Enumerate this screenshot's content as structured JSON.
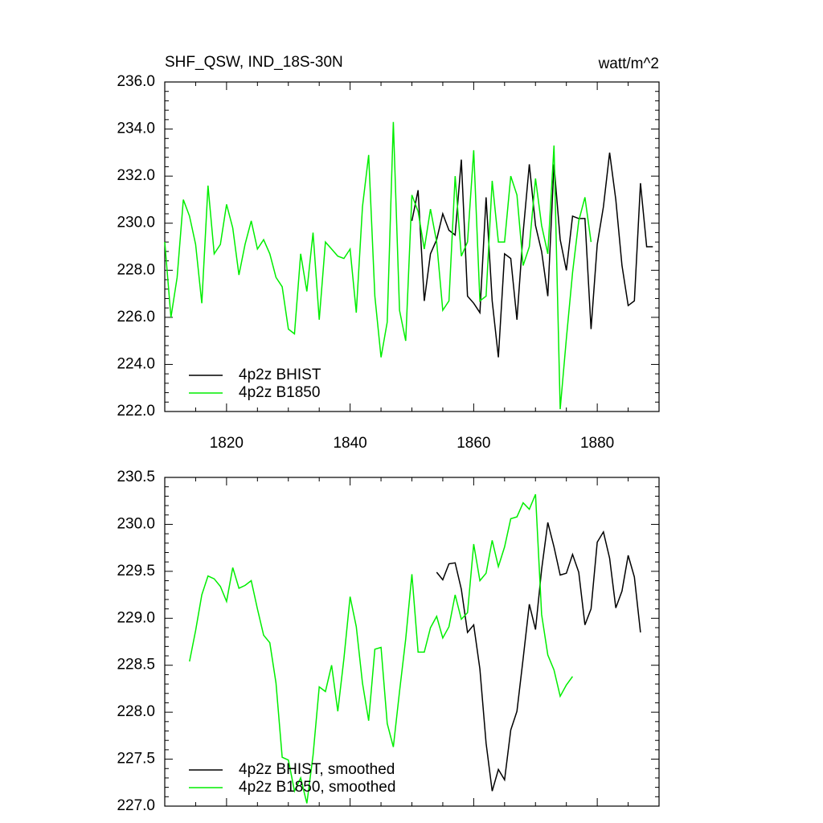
{
  "chart_data": [
    {
      "type": "line",
      "title": "SHF_QSW, IND_18S-30N",
      "units": "watt/m^2",
      "x": [
        1810,
        1811,
        1812,
        1813,
        1814,
        1815,
        1816,
        1817,
        1818,
        1819,
        1820,
        1821,
        1822,
        1823,
        1824,
        1825,
        1826,
        1827,
        1828,
        1829,
        1830,
        1831,
        1832,
        1833,
        1834,
        1835,
        1836,
        1837,
        1838,
        1839,
        1840,
        1841,
        1842,
        1843,
        1844,
        1845,
        1846,
        1847,
        1848,
        1849,
        1850,
        1851,
        1852,
        1853,
        1854,
        1855,
        1856,
        1857,
        1858,
        1859,
        1860,
        1861,
        1862,
        1863,
        1864,
        1865,
        1866,
        1867,
        1868,
        1869,
        1870,
        1871,
        1872,
        1873,
        1874,
        1875,
        1876,
        1877,
        1878,
        1879,
        1880,
        1881,
        1882,
        1883,
        1884,
        1885,
        1886,
        1887,
        1888,
        1889
      ],
      "series": [
        {
          "name": "4p2z BHIST",
          "color": "#000000",
          "values": [
            null,
            null,
            null,
            null,
            null,
            null,
            null,
            null,
            null,
            null,
            null,
            null,
            null,
            null,
            null,
            null,
            null,
            null,
            null,
            null,
            null,
            null,
            null,
            null,
            null,
            null,
            null,
            null,
            null,
            null,
            null,
            null,
            null,
            null,
            null,
            null,
            null,
            null,
            null,
            null,
            230.1,
            231.4,
            226.7,
            228.7,
            229.3,
            230.4,
            229.7,
            229.5,
            232.7,
            226.9,
            226.6,
            226.2,
            231.1,
            226.7,
            224.3,
            228.7,
            228.5,
            225.9,
            229.6,
            232.5,
            229.9,
            228.8,
            226.9,
            232.5,
            229.3,
            228.0,
            230.3,
            230.2,
            230.2,
            225.5,
            229.1,
            230.7,
            233.0,
            231.0,
            228.2,
            226.5,
            226.7,
            231.7,
            229.0,
            229.0
          ]
        },
        {
          "name": "4p2z B1850",
          "color": "#00ee00",
          "values": [
            229.2,
            226.0,
            227.7,
            231.0,
            230.3,
            229.1,
            226.6,
            231.6,
            228.7,
            229.1,
            230.8,
            229.8,
            227.8,
            229.1,
            230.1,
            228.9,
            229.3,
            228.7,
            227.7,
            227.3,
            225.5,
            225.3,
            228.7,
            227.1,
            229.6,
            225.9,
            229.2,
            228.9,
            228.6,
            228.5,
            228.9,
            226.2,
            230.7,
            232.9,
            226.9,
            224.3,
            225.8,
            234.3,
            226.3,
            225.0,
            231.2,
            230.5,
            228.9,
            230.6,
            229.2,
            226.3,
            226.7,
            232.0,
            228.6,
            229.2,
            233.1,
            226.7,
            226.9,
            231.8,
            229.2,
            229.2,
            232.0,
            231.2,
            228.2,
            229.0,
            231.9,
            229.9,
            228.7,
            233.3,
            222.1,
            225.1,
            227.9,
            230.1,
            231.1,
            229.2,
            null,
            null,
            null,
            null,
            null,
            null,
            null,
            null,
            null,
            null
          ]
        }
      ],
      "xlim": [
        1810,
        1890
      ],
      "xticks": [
        1820,
        1840,
        1860,
        1880
      ],
      "ylim": [
        222,
        236
      ],
      "yticks": [
        {
          "value": 222,
          "label": "222.0"
        },
        {
          "value": 224,
          "label": "224.0"
        },
        {
          "value": 226,
          "label": "226.0"
        },
        {
          "value": 228,
          "label": "228.0"
        },
        {
          "value": 230,
          "label": "230.0"
        },
        {
          "value": 232,
          "label": "232.0"
        },
        {
          "value": 234,
          "label": "234.0"
        },
        {
          "value": 236,
          "label": "236.0"
        }
      ],
      "legend": "lower left"
    },
    {
      "type": "line",
      "x": [
        1814,
        1815,
        1816,
        1817,
        1818,
        1819,
        1820,
        1821,
        1822,
        1823,
        1824,
        1825,
        1826,
        1827,
        1828,
        1829,
        1830,
        1831,
        1832,
        1833,
        1834,
        1835,
        1836,
        1837,
        1838,
        1839,
        1840,
        1841,
        1842,
        1843,
        1844,
        1845,
        1846,
        1847,
        1848,
        1849,
        1850,
        1851,
        1852,
        1853,
        1854,
        1855,
        1856,
        1857,
        1858,
        1859,
        1860,
        1861,
        1862,
        1863,
        1864,
        1865,
        1866,
        1867,
        1868,
        1869,
        1870,
        1871,
        1872,
        1873,
        1874,
        1875,
        1876,
        1877,
        1878,
        1879,
        1880,
        1881,
        1882,
        1883,
        1884,
        1885,
        1886,
        1887
      ],
      "series": [
        {
          "name": "4p2z BHIST, smoothed",
          "color": "#000000",
          "values": [
            null,
            null,
            null,
            null,
            null,
            null,
            null,
            null,
            null,
            null,
            null,
            null,
            null,
            null,
            null,
            null,
            null,
            null,
            null,
            null,
            null,
            null,
            null,
            null,
            null,
            null,
            null,
            null,
            null,
            null,
            null,
            null,
            null,
            null,
            null,
            null,
            null,
            null,
            null,
            null,
            229.49,
            229.41,
            229.58,
            229.59,
            229.31,
            228.85,
            228.93,
            228.46,
            227.67,
            227.16,
            227.39,
            227.28,
            227.81,
            228.01,
            228.57,
            229.15,
            228.88,
            229.52,
            230.02,
            229.76,
            229.46,
            229.48,
            229.68,
            229.49,
            228.93,
            229.1,
            229.81,
            229.92,
            229.64,
            229.11,
            229.29,
            229.67,
            229.44,
            228.85
          ]
        },
        {
          "name": "4p2z B1850, smoothed",
          "color": "#00ee00",
          "values": [
            228.54,
            228.87,
            229.25,
            229.45,
            229.42,
            229.34,
            229.18,
            229.54,
            229.32,
            229.35,
            229.4,
            229.1,
            228.82,
            228.74,
            228.31,
            227.52,
            227.49,
            227.16,
            227.3,
            227.03,
            227.54,
            228.27,
            228.22,
            228.5,
            228.01,
            228.57,
            229.23,
            228.91,
            228.31,
            227.91,
            228.67,
            228.69,
            227.88,
            227.63,
            228.22,
            228.78,
            229.47,
            228.64,
            228.64,
            228.9,
            229.02,
            228.79,
            228.91,
            229.25,
            228.99,
            229.06,
            229.79,
            229.4,
            229.48,
            229.83,
            229.55,
            229.76,
            230.06,
            230.08,
            230.23,
            230.16,
            230.32,
            229.04,
            228.61,
            228.45,
            228.17,
            228.29,
            228.38,
            null,
            null,
            null,
            null,
            null,
            null,
            null,
            null,
            null,
            null,
            null
          ]
        }
      ],
      "xlim": [
        1810,
        1890
      ],
      "xticks": [
        1820,
        1840,
        1860,
        1880
      ],
      "ylim": [
        227,
        230.5
      ],
      "yticks": [
        {
          "value": 227,
          "label": "227.0"
        },
        {
          "value": 227.5,
          "label": "227.5"
        },
        {
          "value": 228,
          "label": "228.0"
        },
        {
          "value": 228.5,
          "label": "228.5"
        },
        {
          "value": 229,
          "label": "229.0"
        },
        {
          "value": 229.5,
          "label": "229.5"
        },
        {
          "value": 230,
          "label": "230.0"
        },
        {
          "value": 230.5,
          "label": "230.5"
        }
      ],
      "legend": "lower left"
    }
  ]
}
